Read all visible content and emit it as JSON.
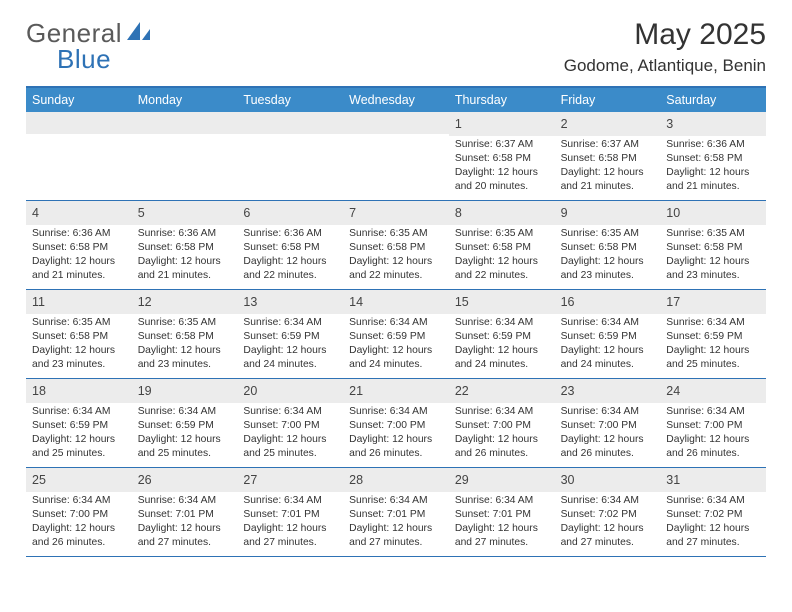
{
  "logo": {
    "text_a": "General",
    "text_b": "Blue"
  },
  "colors": {
    "accent": "#3b8bc9",
    "accent_border": "#2e72b5",
    "stripe": "#ececec",
    "bg": "#ffffff",
    "text": "#333333",
    "logo_gray": "#5a5a5a"
  },
  "title": "May 2025",
  "location": "Godome, Atlantique, Benin",
  "weekdays": [
    "Sunday",
    "Monday",
    "Tuesday",
    "Wednesday",
    "Thursday",
    "Friday",
    "Saturday"
  ],
  "calendar": {
    "first_weekday_index": 4,
    "days": [
      {
        "n": 1,
        "sunrise": "6:37 AM",
        "sunset": "6:58 PM",
        "daylight": "12 hours and 20 minutes."
      },
      {
        "n": 2,
        "sunrise": "6:37 AM",
        "sunset": "6:58 PM",
        "daylight": "12 hours and 21 minutes."
      },
      {
        "n": 3,
        "sunrise": "6:36 AM",
        "sunset": "6:58 PM",
        "daylight": "12 hours and 21 minutes."
      },
      {
        "n": 4,
        "sunrise": "6:36 AM",
        "sunset": "6:58 PM",
        "daylight": "12 hours and 21 minutes."
      },
      {
        "n": 5,
        "sunrise": "6:36 AM",
        "sunset": "6:58 PM",
        "daylight": "12 hours and 21 minutes."
      },
      {
        "n": 6,
        "sunrise": "6:36 AM",
        "sunset": "6:58 PM",
        "daylight": "12 hours and 22 minutes."
      },
      {
        "n": 7,
        "sunrise": "6:35 AM",
        "sunset": "6:58 PM",
        "daylight": "12 hours and 22 minutes."
      },
      {
        "n": 8,
        "sunrise": "6:35 AM",
        "sunset": "6:58 PM",
        "daylight": "12 hours and 22 minutes."
      },
      {
        "n": 9,
        "sunrise": "6:35 AM",
        "sunset": "6:58 PM",
        "daylight": "12 hours and 23 minutes."
      },
      {
        "n": 10,
        "sunrise": "6:35 AM",
        "sunset": "6:58 PM",
        "daylight": "12 hours and 23 minutes."
      },
      {
        "n": 11,
        "sunrise": "6:35 AM",
        "sunset": "6:58 PM",
        "daylight": "12 hours and 23 minutes."
      },
      {
        "n": 12,
        "sunrise": "6:35 AM",
        "sunset": "6:58 PM",
        "daylight": "12 hours and 23 minutes."
      },
      {
        "n": 13,
        "sunrise": "6:34 AM",
        "sunset": "6:59 PM",
        "daylight": "12 hours and 24 minutes."
      },
      {
        "n": 14,
        "sunrise": "6:34 AM",
        "sunset": "6:59 PM",
        "daylight": "12 hours and 24 minutes."
      },
      {
        "n": 15,
        "sunrise": "6:34 AM",
        "sunset": "6:59 PM",
        "daylight": "12 hours and 24 minutes."
      },
      {
        "n": 16,
        "sunrise": "6:34 AM",
        "sunset": "6:59 PM",
        "daylight": "12 hours and 24 minutes."
      },
      {
        "n": 17,
        "sunrise": "6:34 AM",
        "sunset": "6:59 PM",
        "daylight": "12 hours and 25 minutes."
      },
      {
        "n": 18,
        "sunrise": "6:34 AM",
        "sunset": "6:59 PM",
        "daylight": "12 hours and 25 minutes."
      },
      {
        "n": 19,
        "sunrise": "6:34 AM",
        "sunset": "6:59 PM",
        "daylight": "12 hours and 25 minutes."
      },
      {
        "n": 20,
        "sunrise": "6:34 AM",
        "sunset": "7:00 PM",
        "daylight": "12 hours and 25 minutes."
      },
      {
        "n": 21,
        "sunrise": "6:34 AM",
        "sunset": "7:00 PM",
        "daylight": "12 hours and 26 minutes."
      },
      {
        "n": 22,
        "sunrise": "6:34 AM",
        "sunset": "7:00 PM",
        "daylight": "12 hours and 26 minutes."
      },
      {
        "n": 23,
        "sunrise": "6:34 AM",
        "sunset": "7:00 PM",
        "daylight": "12 hours and 26 minutes."
      },
      {
        "n": 24,
        "sunrise": "6:34 AM",
        "sunset": "7:00 PM",
        "daylight": "12 hours and 26 minutes."
      },
      {
        "n": 25,
        "sunrise": "6:34 AM",
        "sunset": "7:00 PM",
        "daylight": "12 hours and 26 minutes."
      },
      {
        "n": 26,
        "sunrise": "6:34 AM",
        "sunset": "7:01 PM",
        "daylight": "12 hours and 27 minutes."
      },
      {
        "n": 27,
        "sunrise": "6:34 AM",
        "sunset": "7:01 PM",
        "daylight": "12 hours and 27 minutes."
      },
      {
        "n": 28,
        "sunrise": "6:34 AM",
        "sunset": "7:01 PM",
        "daylight": "12 hours and 27 minutes."
      },
      {
        "n": 29,
        "sunrise": "6:34 AM",
        "sunset": "7:01 PM",
        "daylight": "12 hours and 27 minutes."
      },
      {
        "n": 30,
        "sunrise": "6:34 AM",
        "sunset": "7:02 PM",
        "daylight": "12 hours and 27 minutes."
      },
      {
        "n": 31,
        "sunrise": "6:34 AM",
        "sunset": "7:02 PM",
        "daylight": "12 hours and 27 minutes."
      }
    ]
  },
  "labels": {
    "sunrise": "Sunrise:",
    "sunset": "Sunset:",
    "daylight": "Daylight:"
  }
}
